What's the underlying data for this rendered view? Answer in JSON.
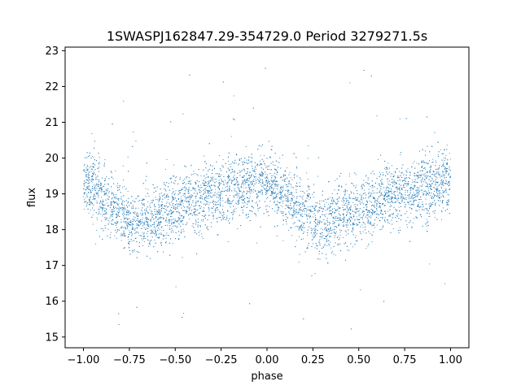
{
  "chart_data": {
    "type": "scatter",
    "title": "1SWASPJ162847.29-354729.0 Period 3279271.5s",
    "xlabel": "phase",
    "ylabel": "flux",
    "xlim": [
      -1.1,
      1.1
    ],
    "ylim": [
      14.7,
      23.1
    ],
    "x_ticks": [
      -1.0,
      -0.75,
      -0.5,
      -0.25,
      0.0,
      0.25,
      0.5,
      0.75,
      1.0
    ],
    "x_tick_labels": [
      "−1.00",
      "−0.75",
      "−0.50",
      "−0.25",
      "0.00",
      "0.25",
      "0.50",
      "0.75",
      "1.00"
    ],
    "y_ticks": [
      15,
      16,
      17,
      18,
      19,
      20,
      21,
      22,
      23
    ],
    "y_tick_labels": [
      "15",
      "16",
      "17",
      "18",
      "19",
      "20",
      "21",
      "22",
      "23"
    ],
    "grid": false,
    "legend": "none",
    "marker_color": "#1f77b4",
    "series": [
      {
        "phase_profile": {
          "x": [
            0.0,
            0.05,
            0.1,
            0.15,
            0.2,
            0.25,
            0.3,
            0.35,
            0.4,
            0.45,
            0.5,
            0.55,
            0.6,
            0.65,
            0.7,
            0.75,
            0.8,
            0.85,
            0.9,
            0.95
          ],
          "y": [
            19.4,
            19.2,
            18.9,
            18.7,
            18.5,
            18.3,
            18.2,
            18.3,
            18.4,
            18.5,
            18.6,
            18.7,
            18.8,
            18.9,
            19.0,
            19.0,
            19.1,
            19.1,
            19.2,
            19.3
          ]
        },
        "scatter_sd": 0.45,
        "x_range": [
          -1.0,
          1.0
        ],
        "y_range": [
          15.1,
          22.7
        ],
        "n_points": 7000
      }
    ]
  }
}
